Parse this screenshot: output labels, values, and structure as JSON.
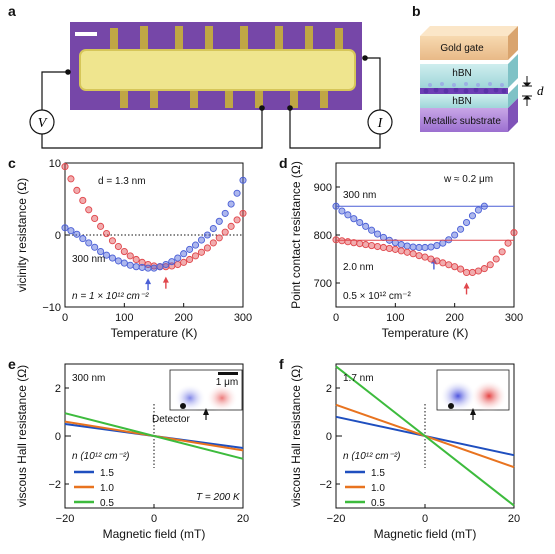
{
  "panels": {
    "a": {
      "label": "a",
      "v_label": "V",
      "i_label": "I"
    },
    "b": {
      "label": "b",
      "layers": [
        "Gold gate",
        "hBN",
        "hBN",
        "Metallic substrate"
      ],
      "d_label": "d"
    }
  },
  "colors": {
    "blue": "#4a5fd6",
    "red": "#e0474c",
    "orange": "#e8731f",
    "green": "#3dbb3d",
    "blue_line": "#1f4fbf"
  },
  "chart_data": [
    {
      "id": "c",
      "panel_label": "c",
      "type": "scatter",
      "xlabel": "Temperature (K)",
      "ylabel": "vicinity resistance (Ω)",
      "xlim": [
        0,
        300
      ],
      "ylim": [
        -10,
        10
      ],
      "xticks": [
        "0",
        "100",
        "200",
        "300"
      ],
      "yticks": [
        "10",
        "0",
        "−10"
      ],
      "zero_line": true,
      "annotations": {
        "density": "n = 1 × 10¹² cm⁻²"
      },
      "series": [
        {
          "name": "d = 1.3 nm",
          "color": "#e0474c",
          "min_arrow_x": 170,
          "x": [
            0,
            10,
            20,
            30,
            40,
            50,
            60,
            70,
            80,
            90,
            100,
            110,
            120,
            130,
            140,
            150,
            160,
            170,
            180,
            190,
            200,
            210,
            220,
            230,
            240,
            250,
            260,
            270,
            280,
            290,
            300
          ],
          "y": [
            9.5,
            7.8,
            6.2,
            4.8,
            3.5,
            2.3,
            1.2,
            0.2,
            -0.8,
            -1.6,
            -2.3,
            -2.9,
            -3.4,
            -3.8,
            -4.1,
            -4.3,
            -4.4,
            -4.4,
            -4.3,
            -4.1,
            -3.8,
            -3.4,
            -2.9,
            -2.4,
            -1.8,
            -1.1,
            -0.4,
            0.4,
            1.2,
            2.1,
            3.0
          ]
        },
        {
          "name": "300 nm",
          "color": "#4a5fd6",
          "min_arrow_x": 140,
          "x": [
            0,
            10,
            20,
            30,
            40,
            50,
            60,
            70,
            80,
            90,
            100,
            110,
            120,
            130,
            140,
            150,
            160,
            170,
            180,
            190,
            200,
            210,
            220,
            230,
            240,
            250,
            260,
            270,
            280,
            290,
            300
          ],
          "y": [
            1.0,
            0.6,
            0.1,
            -0.5,
            -1.1,
            -1.7,
            -2.3,
            -2.8,
            -3.2,
            -3.6,
            -3.9,
            -4.2,
            -4.4,
            -4.5,
            -4.6,
            -4.6,
            -4.4,
            -4.1,
            -3.7,
            -3.2,
            -2.6,
            -2.0,
            -1.4,
            -0.7,
            0.0,
            0.9,
            1.9,
            3.0,
            4.3,
            5.8,
            7.6
          ]
        }
      ]
    },
    {
      "id": "d",
      "panel_label": "d",
      "type": "scatter",
      "xlabel": "Temperature (K)",
      "ylabel": "Point contact resistance (Ω)",
      "xlim": [
        0,
        300
      ],
      "ylim": [
        650,
        950
      ],
      "xticks": [
        "0",
        "100",
        "200",
        "300"
      ],
      "yticks": [
        "900",
        "800",
        "700"
      ],
      "annotations": {
        "width": "w ≈ 0.2 μm",
        "density": "0.5 × 10¹² cm⁻²"
      },
      "series": [
        {
          "name": "300 nm",
          "color": "#4a5fd6",
          "baseline": 860,
          "min_arrow_x": 165,
          "x": [
            0,
            10,
            20,
            30,
            40,
            50,
            60,
            70,
            80,
            90,
            100,
            110,
            120,
            130,
            140,
            150,
            160,
            170,
            180,
            190,
            200,
            210,
            220,
            230,
            240,
            250
          ],
          "y": [
            860,
            850,
            842,
            834,
            826,
            818,
            810,
            802,
            795,
            789,
            784,
            780,
            777,
            775,
            774,
            774,
            775,
            778,
            783,
            790,
            800,
            812,
            826,
            840,
            852,
            860
          ]
        },
        {
          "name": "2.0 nm",
          "color": "#e0474c",
          "baseline": 789,
          "min_arrow_x": 220,
          "x": [
            0,
            10,
            20,
            30,
            40,
            50,
            60,
            70,
            80,
            90,
            100,
            110,
            120,
            130,
            140,
            150,
            160,
            170,
            180,
            190,
            200,
            210,
            220,
            230,
            240,
            250,
            260,
            270,
            280,
            290,
            300
          ],
          "y": [
            790,
            788,
            786,
            784,
            782,
            780,
            778,
            776,
            774,
            772,
            770,
            767,
            764,
            761,
            757,
            754,
            750,
            746,
            742,
            738,
            734,
            729,
            722,
            722,
            725,
            730,
            738,
            750,
            765,
            783,
            805
          ]
        }
      ]
    },
    {
      "id": "e",
      "panel_label": "e",
      "type": "line",
      "xlabel": "Magnetic field (mT)",
      "ylabel": "viscous Hall resistance (Ω)",
      "xlim": [
        -20,
        20
      ],
      "ylim": [
        -3,
        3
      ],
      "xticks": [
        "−20",
        "0",
        "20"
      ],
      "yticks": [
        "2",
        "0",
        "−2"
      ],
      "annotations": {
        "size": "300 nm",
        "temperature": "T = 200 K",
        "scale_bar": "1 μm",
        "detector": "Detector",
        "legend_title": "n (10¹² cm⁻²)"
      },
      "series": [
        {
          "name": "1.5",
          "color": "#1f4fbf",
          "x": [
            -20,
            20
          ],
          "y": [
            0.5,
            -0.5
          ]
        },
        {
          "name": "1.0",
          "color": "#e8731f",
          "x": [
            -20,
            20
          ],
          "y": [
            0.6,
            -0.6
          ]
        },
        {
          "name": "0.5",
          "color": "#3dbb3d",
          "x": [
            -20,
            20
          ],
          "y": [
            0.95,
            -0.95
          ]
        }
      ]
    },
    {
      "id": "f",
      "panel_label": "f",
      "type": "line",
      "xlabel": "Magnetic field (mT)",
      "ylabel": "viscous Hall resistance (Ω)",
      "xlim": [
        -20,
        20
      ],
      "ylim": [
        -3,
        3
      ],
      "xticks": [
        "−20",
        "0",
        "20"
      ],
      "yticks": [
        "2",
        "0",
        "−2"
      ],
      "annotations": {
        "size": "1.7 nm",
        "legend_title": "n (10¹² cm⁻²)"
      },
      "series": [
        {
          "name": "1.5",
          "color": "#1f4fbf",
          "x": [
            -20,
            20
          ],
          "y": [
            0.8,
            -0.8
          ]
        },
        {
          "name": "1.0",
          "color": "#e8731f",
          "x": [
            -20,
            20
          ],
          "y": [
            1.3,
            -1.3
          ]
        },
        {
          "name": "0.5",
          "color": "#3dbb3d",
          "x": [
            -20,
            20
          ],
          "y": [
            2.9,
            -2.9
          ]
        }
      ]
    }
  ]
}
